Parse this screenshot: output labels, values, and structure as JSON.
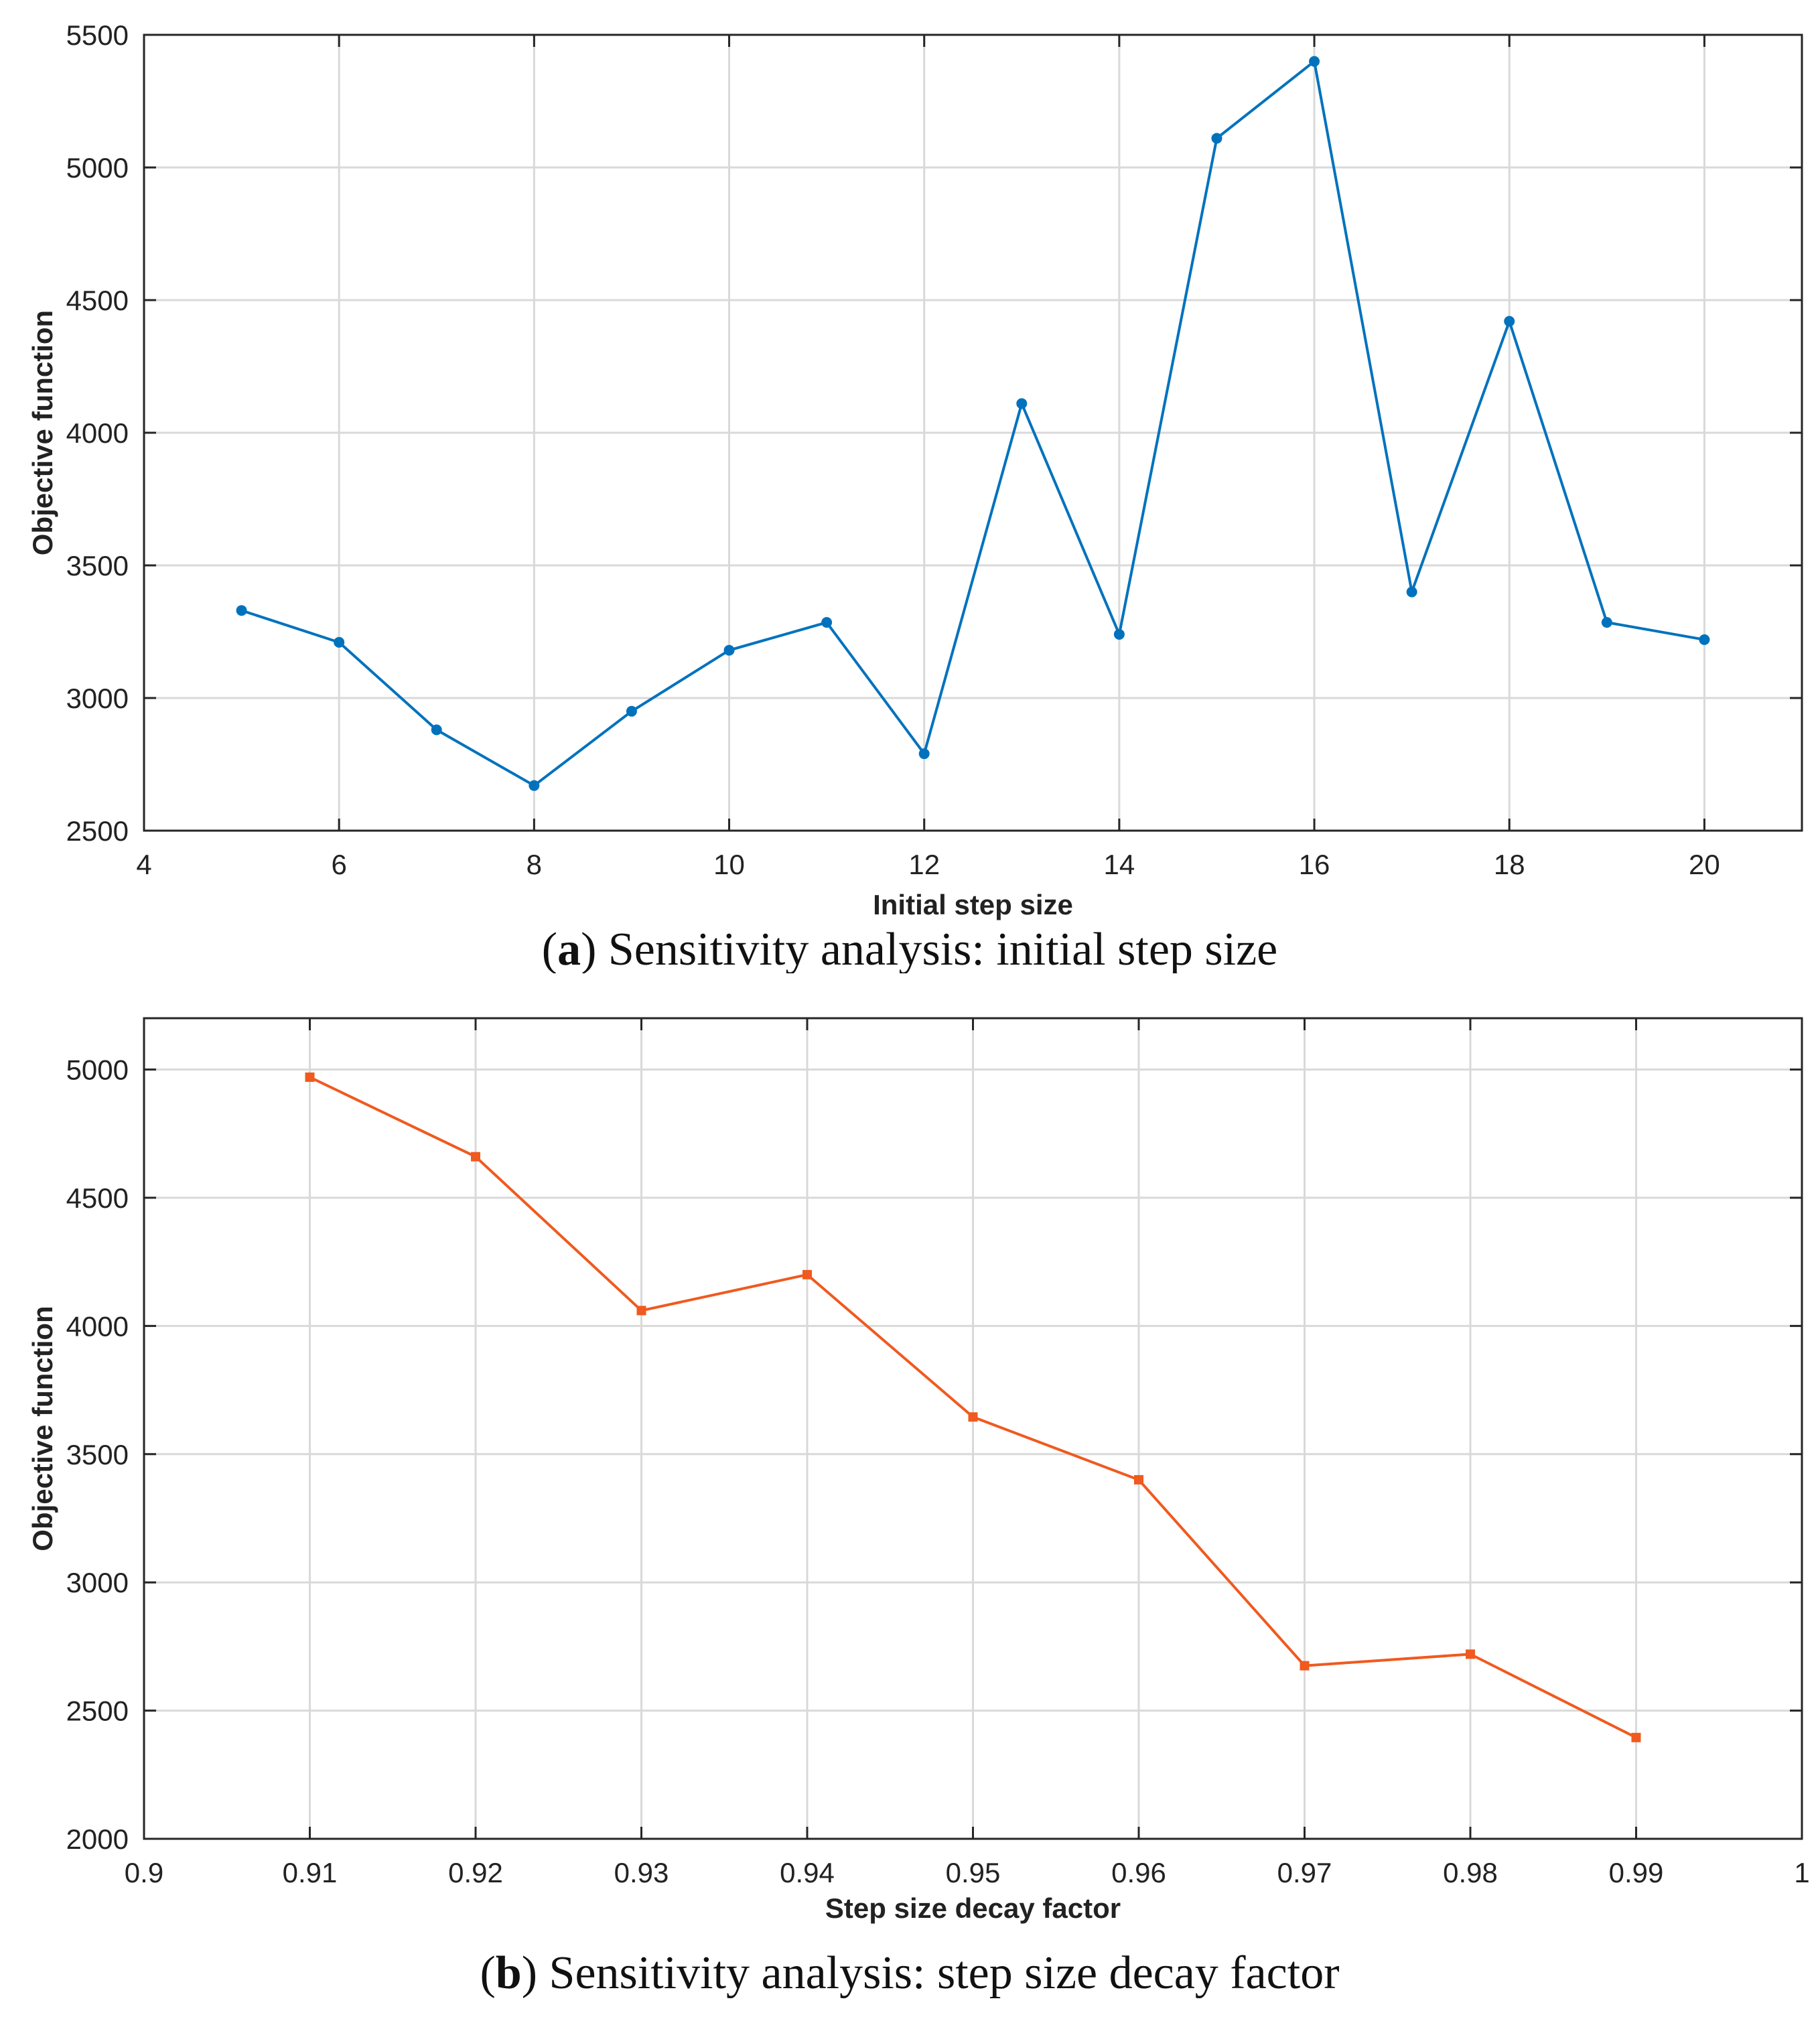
{
  "chart_data": [
    {
      "type": "line",
      "caption_letter": "a",
      "caption_text": "Sensitivity analysis: initial step size",
      "xlabel": "Initial step size",
      "ylabel": "Objective function",
      "xlim": [
        4,
        21
      ],
      "ylim": [
        2500,
        5500
      ],
      "xticks": [
        4,
        6,
        8,
        10,
        12,
        14,
        16,
        18,
        20
      ],
      "yticks": [
        2500,
        3000,
        3500,
        4000,
        4500,
        5000,
        5500
      ],
      "grid": true,
      "color": "#0072BD",
      "marker": "circle",
      "x": [
        5,
        6,
        7,
        8,
        9,
        10,
        11,
        12,
        13,
        14,
        15,
        16,
        17,
        18,
        19,
        20
      ],
      "y": [
        3330,
        3210,
        2880,
        2670,
        2950,
        3180,
        3285,
        2790,
        4110,
        3240,
        5110,
        5400,
        3400,
        4420,
        3285,
        3220
      ]
    },
    {
      "type": "line",
      "caption_letter": "b",
      "caption_text": "Sensitivity analysis: step size decay factor",
      "xlabel": "Step size decay factor",
      "ylabel": "Objective function",
      "xlim": [
        0.9,
        1
      ],
      "ylim": [
        2000,
        5200
      ],
      "xticks": [
        0.9,
        0.91,
        0.92,
        0.93,
        0.94,
        0.95,
        0.96,
        0.97,
        0.98,
        0.99,
        1
      ],
      "xtick_labels": [
        "0.9",
        "0.91",
        "0.92",
        "0.93",
        "0.94",
        "0.95",
        "0.96",
        "0.97",
        "0.98",
        "0.99",
        "1"
      ],
      "yticks": [
        2000,
        2500,
        3000,
        3500,
        4000,
        4500,
        5000
      ],
      "grid": true,
      "color": "#F05A1E",
      "marker": "square",
      "x": [
        0.91,
        0.92,
        0.93,
        0.94,
        0.95,
        0.96,
        0.97,
        0.98,
        0.99
      ],
      "y": [
        4970,
        4660,
        4060,
        4200,
        3645,
        3400,
        2675,
        2720,
        2395
      ]
    }
  ]
}
